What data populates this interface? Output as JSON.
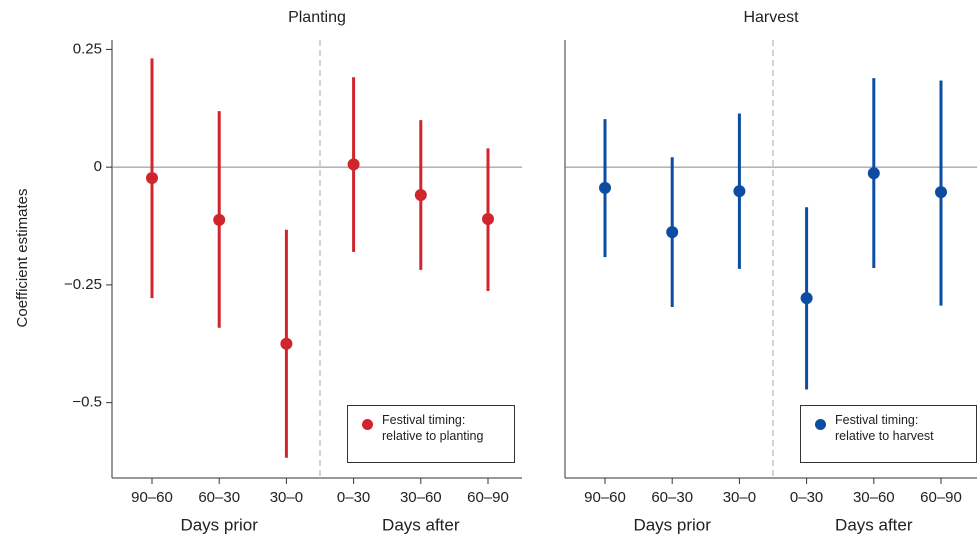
{
  "chart_data": [
    {
      "type": "errorbar",
      "title": "Planting",
      "y_label": "Coefficient estimates",
      "categories": [
        "90–60",
        "60–30",
        "30–0",
        "0–30",
        "30–60",
        "60–90"
      ],
      "x_groups": [
        "Days prior",
        "Days after"
      ],
      "series": [
        {
          "name": "Festival timing:\nrelative to planting",
          "color": "#d0252d",
          "values": [
            -0.023,
            -0.112,
            -0.375,
            0.006,
            -0.059,
            -0.11
          ],
          "lower": [
            -0.278,
            -0.341,
            -0.617,
            -0.18,
            -0.218,
            -0.263
          ],
          "upper": [
            0.231,
            0.119,
            -0.133,
            0.191,
            0.1,
            0.04
          ]
        }
      ],
      "ylim": [
        -0.66,
        0.27
      ],
      "yticks": [
        0.25,
        0,
        {
          "value": -0.25,
          "label": "−0.25"
        },
        {
          "value": -0.5,
          "label": "−0.5"
        }
      ]
    },
    {
      "type": "errorbar",
      "title": "Harvest",
      "categories": [
        "90–60",
        "60–30",
        "30–0",
        "0–30",
        "30–60",
        "60–90"
      ],
      "x_groups": [
        "Days prior",
        "Days after"
      ],
      "series": [
        {
          "name": "Festival timing:\nrelative to harvest",
          "color": "#0c4da2",
          "values": [
            -0.044,
            -0.138,
            -0.051,
            -0.278,
            -0.013,
            -0.053
          ],
          "lower": [
            -0.191,
            -0.297,
            -0.216,
            -0.472,
            -0.214,
            -0.294
          ],
          "upper": [
            0.102,
            0.021,
            0.114,
            -0.085,
            0.189,
            0.184
          ]
        }
      ],
      "ylim": [
        -0.66,
        0.27
      ]
    }
  ]
}
